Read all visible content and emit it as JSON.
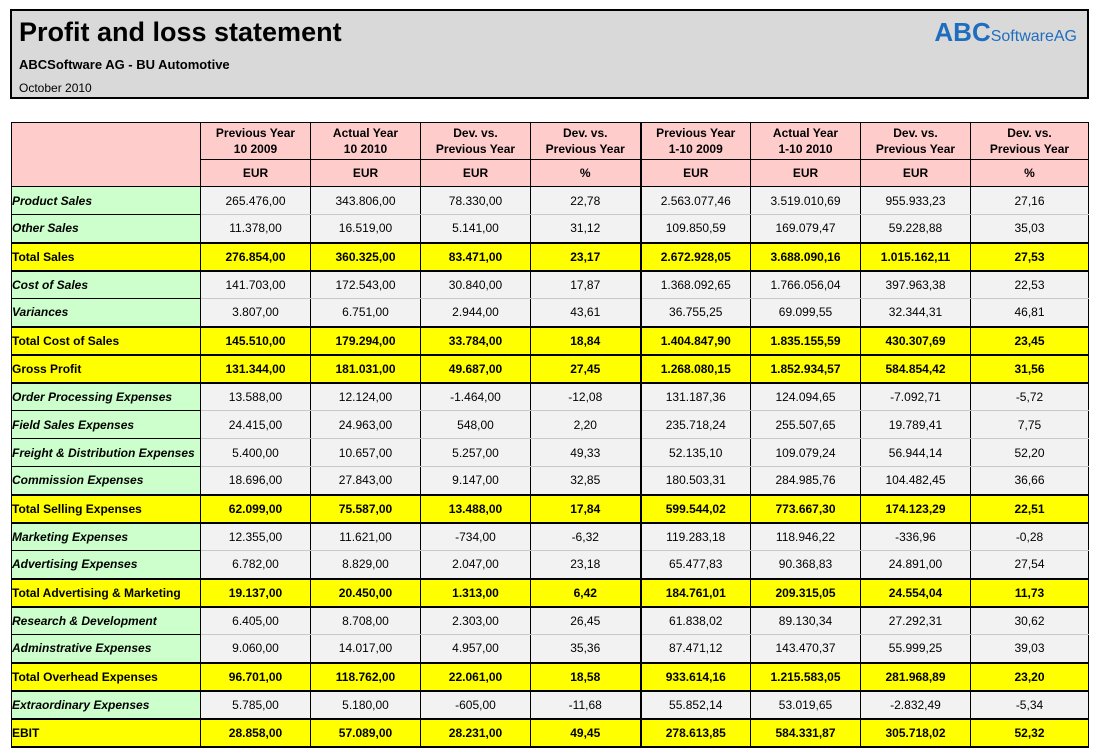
{
  "header": {
    "title": "Profit and loss statement",
    "subtitle": "ABCSoftware AG - BU Automotive",
    "date": "October 2010",
    "logo_abc": "ABC",
    "logo_rest": "SoftwareAG"
  },
  "colors": {
    "header_bg": "#d9d9d9",
    "column_header_bg": "#ffcccc",
    "label_bg": "#ccffcc",
    "total_bg": "#ffff00",
    "logo": "#1f6dbf"
  },
  "columns": [
    {
      "line1": "Previous Year",
      "line2": "10 2009",
      "unit": "EUR"
    },
    {
      "line1": "Actual Year",
      "line2": "10 2010",
      "unit": "EUR"
    },
    {
      "line1": "Dev. vs.",
      "line2": "Previous Year",
      "unit": "EUR"
    },
    {
      "line1": "Dev. vs.",
      "line2": "Previous Year",
      "unit": "%"
    },
    {
      "line1": "Previous Year",
      "line2": "1-10 2009",
      "unit": "EUR"
    },
    {
      "line1": "Actual Year",
      "line2": "1-10 2010",
      "unit": "EUR"
    },
    {
      "line1": "Dev. vs.",
      "line2": "Previous Year",
      "unit": "EUR"
    },
    {
      "line1": "Dev. vs.",
      "line2": "Previous Year",
      "unit": "%"
    }
  ],
  "rows": [
    {
      "label": "Product Sales",
      "total": false,
      "values": [
        "265.476,00",
        "343.806,00",
        "78.330,00",
        "22,78",
        "2.563.077,46",
        "3.519.010,69",
        "955.933,23",
        "27,16"
      ]
    },
    {
      "label": "Other Sales",
      "total": false,
      "values": [
        "11.378,00",
        "16.519,00",
        "5.141,00",
        "31,12",
        "109.850,59",
        "169.079,47",
        "59.228,88",
        "35,03"
      ]
    },
    {
      "label": "Total Sales",
      "total": true,
      "values": [
        "276.854,00",
        "360.325,00",
        "83.471,00",
        "23,17",
        "2.672.928,05",
        "3.688.090,16",
        "1.015.162,11",
        "27,53"
      ]
    },
    {
      "label": "Cost of Sales",
      "total": false,
      "values": [
        "141.703,00",
        "172.543,00",
        "30.840,00",
        "17,87",
        "1.368.092,65",
        "1.766.056,04",
        "397.963,38",
        "22,53"
      ]
    },
    {
      "label": "Variances",
      "total": false,
      "values": [
        "3.807,00",
        "6.751,00",
        "2.944,00",
        "43,61",
        "36.755,25",
        "69.099,55",
        "32.344,31",
        "46,81"
      ]
    },
    {
      "label": "Total Cost of Sales",
      "total": true,
      "values": [
        "145.510,00",
        "179.294,00",
        "33.784,00",
        "18,84",
        "1.404.847,90",
        "1.835.155,59",
        "430.307,69",
        "23,45"
      ]
    },
    {
      "label": "Gross Profit",
      "total": true,
      "values": [
        "131.344,00",
        "181.031,00",
        "49.687,00",
        "27,45",
        "1.268.080,15",
        "1.852.934,57",
        "584.854,42",
        "31,56"
      ]
    },
    {
      "label": "Order Processing Expenses",
      "total": false,
      "values": [
        "13.588,00",
        "12.124,00",
        "-1.464,00",
        "-12,08",
        "131.187,36",
        "124.094,65",
        "-7.092,71",
        "-5,72"
      ]
    },
    {
      "label": "Field Sales Expenses",
      "total": false,
      "values": [
        "24.415,00",
        "24.963,00",
        "548,00",
        "2,20",
        "235.718,24",
        "255.507,65",
        "19.789,41",
        "7,75"
      ]
    },
    {
      "label": "Freight & Distribution Expenses",
      "total": false,
      "values": [
        "5.400,00",
        "10.657,00",
        "5.257,00",
        "49,33",
        "52.135,10",
        "109.079,24",
        "56.944,14",
        "52,20"
      ]
    },
    {
      "label": "Commission Expenses",
      "total": false,
      "values": [
        "18.696,00",
        "27.843,00",
        "9.147,00",
        "32,85",
        "180.503,31",
        "284.985,76",
        "104.482,45",
        "36,66"
      ]
    },
    {
      "label": "Total Selling Expenses",
      "total": true,
      "values": [
        "62.099,00",
        "75.587,00",
        "13.488,00",
        "17,84",
        "599.544,02",
        "773.667,30",
        "174.123,29",
        "22,51"
      ]
    },
    {
      "label": "Marketing Expenses",
      "total": false,
      "values": [
        "12.355,00",
        "11.621,00",
        "-734,00",
        "-6,32",
        "119.283,18",
        "118.946,22",
        "-336,96",
        "-0,28"
      ]
    },
    {
      "label": "Advertising Expenses",
      "total": false,
      "values": [
        "6.782,00",
        "8.829,00",
        "2.047,00",
        "23,18",
        "65.477,83",
        "90.368,83",
        "24.891,00",
        "27,54"
      ]
    },
    {
      "label": "Total Advertising & Marketing",
      "total": true,
      "values": [
        "19.137,00",
        "20.450,00",
        "1.313,00",
        "6,42",
        "184.761,01",
        "209.315,05",
        "24.554,04",
        "11,73"
      ]
    },
    {
      "label": "Research & Development",
      "total": false,
      "values": [
        "6.405,00",
        "8.708,00",
        "2.303,00",
        "26,45",
        "61.838,02",
        "89.130,34",
        "27.292,31",
        "30,62"
      ]
    },
    {
      "label": "Adminstrative Expenses",
      "total": false,
      "values": [
        "9.060,00",
        "14.017,00",
        "4.957,00",
        "35,36",
        "87.471,12",
        "143.470,37",
        "55.999,25",
        "39,03"
      ]
    },
    {
      "label": "Total Overhead Expenses",
      "total": true,
      "values": [
        "96.701,00",
        "118.762,00",
        "22.061,00",
        "18,58",
        "933.614,16",
        "1.215.583,05",
        "281.968,89",
        "23,20"
      ]
    },
    {
      "label": "Extraordinary Expenses",
      "total": false,
      "values": [
        "5.785,00",
        "5.180,00",
        "-605,00",
        "-11,68",
        "55.852,14",
        "53.019,65",
        "-2.832,49",
        "-5,34"
      ]
    },
    {
      "label": "EBIT",
      "total": true,
      "values": [
        "28.858,00",
        "57.089,00",
        "28.231,00",
        "49,45",
        "278.613,85",
        "584.331,87",
        "305.718,02",
        "52,32"
      ]
    }
  ]
}
